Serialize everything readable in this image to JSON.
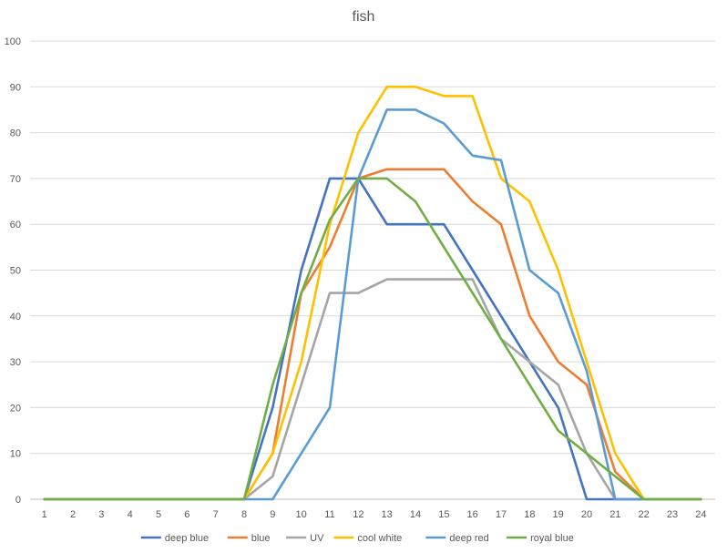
{
  "chart_data": {
    "type": "line",
    "title": "fish",
    "xlabel": "",
    "ylabel": "",
    "x": [
      1,
      2,
      3,
      4,
      5,
      6,
      7,
      8,
      9,
      10,
      11,
      12,
      13,
      14,
      15,
      16,
      17,
      18,
      19,
      20,
      21,
      22,
      23,
      24
    ],
    "ylim": [
      0,
      100
    ],
    "yticks": [
      0,
      10,
      20,
      30,
      40,
      50,
      60,
      70,
      80,
      90,
      100
    ],
    "grid": true,
    "legend_position": "bottom",
    "series": [
      {
        "name": "deep blue",
        "color": "#4472c4",
        "values": [
          0,
          0,
          0,
          0,
          0,
          0,
          0,
          0,
          20,
          50,
          70,
          70,
          60,
          60,
          60,
          50,
          40,
          30,
          20,
          0,
          0,
          0,
          0,
          0
        ]
      },
      {
        "name": "blue",
        "color": "#ed7d31",
        "values": [
          0,
          0,
          0,
          0,
          0,
          0,
          0,
          0,
          10,
          45,
          55,
          70,
          72,
          72,
          72,
          65,
          60,
          40,
          30,
          25,
          6,
          0,
          0,
          0
        ]
      },
      {
        "name": "UV",
        "color": "#a5a5a5",
        "values": [
          0,
          0,
          0,
          0,
          0,
          0,
          0,
          0,
          5,
          25,
          45,
          45,
          48,
          48,
          48,
          48,
          35,
          30,
          25,
          10,
          0,
          0,
          0,
          0
        ]
      },
      {
        "name": "cool white",
        "color": "#ffc000",
        "values": [
          0,
          0,
          0,
          0,
          0,
          0,
          0,
          0,
          10,
          30,
          60,
          80,
          90,
          90,
          88,
          88,
          70,
          65,
          50,
          30,
          10,
          0,
          0,
          0
        ]
      },
      {
        "name": "deep red",
        "color": "#5b9bd5",
        "values": [
          0,
          0,
          0,
          0,
          0,
          0,
          0,
          0,
          0,
          10,
          20,
          70,
          85,
          85,
          82,
          75,
          74,
          50,
          45,
          28,
          0,
          0,
          0,
          0
        ]
      },
      {
        "name": "royal blue",
        "color": "#70ad47",
        "values": [
          0,
          0,
          0,
          0,
          0,
          0,
          0,
          0,
          25,
          45,
          61,
          70,
          70,
          65,
          55,
          45,
          35,
          25,
          15,
          10,
          5,
          0,
          0,
          0
        ]
      }
    ]
  }
}
